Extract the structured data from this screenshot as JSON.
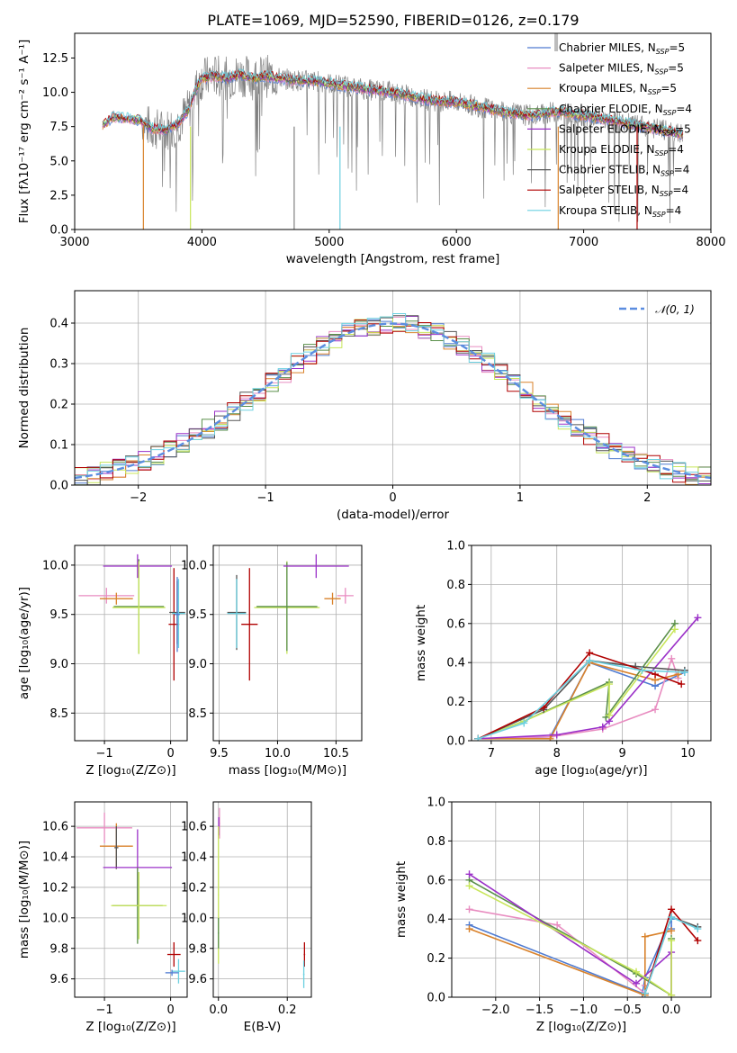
{
  "figure": {
    "title": "PLATE=1069, MJD=52590, FIBERID=0126, z=0.179"
  },
  "colors": {
    "Chabrier MILES": "#4f7bd1",
    "Salpeter MILES": "#e88cc0",
    "Kroupa MILES": "#d9822b",
    "Chabrier ELODIE": "#5a8f4a",
    "Salpeter ELODIE": "#9b30c8",
    "Kroupa ELODIE": "#c8e65a",
    "Chabrier STELIB": "#555555",
    "Salpeter STELIB": "#b00000",
    "Kroupa STELIB": "#6cd0e0",
    "data": "#808080",
    "normal_curve": "#5b8de0"
  },
  "models": [
    {
      "name": "Chabrier MILES",
      "nssp": "5"
    },
    {
      "name": "Salpeter MILES",
      "nssp": "5"
    },
    {
      "name": "Kroupa MILES",
      "nssp": "5"
    },
    {
      "name": "Chabrier ELODIE",
      "nssp": "4"
    },
    {
      "name": "Salpeter ELODIE",
      "nssp": "5"
    },
    {
      "name": "Kroupa ELODIE",
      "nssp": "4"
    },
    {
      "name": "Chabrier STELIB",
      "nssp": "4"
    },
    {
      "name": "Salpeter STELIB",
      "nssp": "4"
    },
    {
      "name": "Kroupa STELIB",
      "nssp": "4"
    }
  ],
  "chart_data": [
    {
      "id": "spectrum",
      "type": "line",
      "title": "PLATE=1069, MJD=52590, FIBERID=0126, z=0.179",
      "xlabel": "wavelength [Angstrom, rest frame]",
      "ylabel": "Flux [fλ10⁻¹⁷ erg cm⁻² s⁻¹ A⁻¹]",
      "xlim": [
        3000,
        8000
      ],
      "ylim": [
        0,
        14.3
      ],
      "xticks": [
        "3000",
        "4000",
        "5000",
        "6000",
        "7000",
        "8000"
      ],
      "yticks": [
        "0.0",
        "2.5",
        "5.0",
        "7.5",
        "10.0",
        "12.5"
      ],
      "grid": false,
      "legend": "top-right",
      "continuum": {
        "x": [
          3220,
          3300,
          3400,
          3500,
          3600,
          3700,
          3800,
          3900,
          3950,
          4000,
          4100,
          4200,
          4300,
          4400,
          4500,
          4700,
          4900,
          5100,
          5300,
          5500,
          5800,
          6000,
          6200,
          6400,
          6600,
          6800,
          7000,
          7200,
          7400,
          7600,
          7780
        ],
        "y": [
          7.6,
          8.2,
          8.1,
          8.0,
          7.4,
          7.2,
          7.6,
          8.8,
          10.2,
          11.0,
          11.2,
          11.0,
          11.3,
          11.0,
          11.2,
          10.9,
          10.8,
          10.5,
          10.2,
          10.0,
          9.4,
          9.3,
          8.9,
          8.5,
          8.3,
          8.6,
          8.3,
          8.0,
          7.6,
          7.3,
          6.9
        ]
      }
    },
    {
      "id": "residuals",
      "type": "line",
      "xlabel": "(data-model)/error",
      "ylabel": "Normed distribution",
      "xlim": [
        -2.5,
        2.5
      ],
      "ylim": [
        0,
        0.48
      ],
      "xticks": [
        "−2",
        "−1",
        "0",
        "1",
        "2"
      ],
      "yticks": [
        "0.0",
        "0.1",
        "0.2",
        "0.3",
        "0.4"
      ],
      "grid": true,
      "legend": "top-right",
      "legend_label": "𝒩(0, 1)",
      "curve": "normal(0,1)"
    },
    {
      "id": "age-vs-Z",
      "type": "scatter",
      "xlabel": "Z [log₁₀(Z/Z⊙)]",
      "ylabel": "age  [log₁₀(age/yr)]",
      "xlim": [
        -1.45,
        0.25
      ],
      "ylim": [
        8.22,
        10.2
      ],
      "xticks": [
        "−1",
        "0"
      ],
      "yticks": [
        "8.5",
        "9.0",
        "9.5",
        "10.0"
      ],
      "grid": true,
      "points": [
        {
          "model": "Salpeter MILES",
          "x": -0.97,
          "y": 9.69,
          "xerr": 0.42,
          "yerr": 0.08
        },
        {
          "model": "Kroupa MILES",
          "x": -0.82,
          "y": 9.66,
          "xerr": 0.25,
          "yerr": 0.06
        },
        {
          "model": "Salpeter ELODIE",
          "x": -0.5,
          "y": 9.99,
          "xerr": 0.52,
          "yerr": 0.12
        },
        {
          "model": "Chabrier ELODIE",
          "x": -0.48,
          "y": 9.58,
          "xerr": 0.38,
          "yerr": 0.48
        },
        {
          "model": "Kroupa ELODIE",
          "x": -0.48,
          "y": 9.57,
          "xerr": 0.4,
          "yerr": 0.47
        },
        {
          "model": "Salpeter STELIB",
          "x": 0.05,
          "y": 9.4,
          "xerr": 0.08,
          "yerr": 0.57
        },
        {
          "model": "Chabrier STELIB",
          "x": 0.1,
          "y": 9.52,
          "xerr": 0.12,
          "yerr": 0.32
        },
        {
          "model": "Kroupa STELIB",
          "x": 0.12,
          "y": 9.51,
          "xerr": 0.1,
          "yerr": 0.35
        },
        {
          "model": "Chabrier MILES",
          "x": 0.1,
          "y": 9.5,
          "xerr": 0.04,
          "yerr": 0.38
        }
      ]
    },
    {
      "id": "age-vs-mass",
      "type": "scatter",
      "xlabel": "mass [log₁₀(M/M⊙)]",
      "xlim": [
        9.45,
        10.72
      ],
      "ylim": [
        8.22,
        10.2
      ],
      "xticks": [
        "9.5",
        "10.0",
        "10.5"
      ],
      "yticks": [
        "8.5",
        "9.0",
        "9.5",
        "10.0"
      ],
      "grid": true,
      "points": [
        {
          "model": "Chabrier STELIB",
          "x": 9.65,
          "y": 9.52,
          "xerr": 0.08,
          "yerr": 0.38
        },
        {
          "model": "Kroupa STELIB",
          "x": 9.65,
          "y": 9.51,
          "xerr": 0.08,
          "yerr": 0.35
        },
        {
          "model": "Salpeter STELIB",
          "x": 9.76,
          "y": 9.4,
          "xerr": 0.07,
          "yerr": 0.57
        },
        {
          "model": "Kroupa ELODIE",
          "x": 10.08,
          "y": 9.57,
          "xerr": 0.28,
          "yerr": 0.47
        },
        {
          "model": "Chabrier ELODIE",
          "x": 10.08,
          "y": 9.58,
          "xerr": 0.26,
          "yerr": 0.45
        },
        {
          "model": "Salpeter ELODIE",
          "x": 10.33,
          "y": 9.99,
          "xerr": 0.28,
          "yerr": 0.12
        },
        {
          "model": "Kroupa MILES",
          "x": 10.47,
          "y": 9.66,
          "xerr": 0.07,
          "yerr": 0.06
        },
        {
          "model": "Salpeter MILES",
          "x": 10.58,
          "y": 9.69,
          "xerr": 0.07,
          "yerr": 0.08
        }
      ]
    },
    {
      "id": "weight-vs-age",
      "type": "line",
      "xlabel": "age  [log₁₀(age/yr)]",
      "ylabel": "mass weight",
      "xlim": [
        6.7,
        10.35
      ],
      "ylim": [
        0,
        1.0
      ],
      "xticks": [
        "7",
        "8",
        "9",
        "10"
      ],
      "yticks": [
        "0.0",
        "0.2",
        "0.4",
        "0.6",
        "0.8",
        "1.0"
      ],
      "grid": true,
      "series": [
        {
          "name": "Chabrier MILES",
          "x": [
            6.8,
            7.9,
            8.5,
            9.5,
            9.95
          ],
          "y": [
            0.01,
            0.02,
            0.4,
            0.28,
            0.35
          ]
        },
        {
          "name": "Salpeter MILES",
          "x": [
            6.8,
            7.9,
            8.7,
            9.5,
            9.75,
            9.85
          ],
          "y": [
            0.01,
            0.02,
            0.06,
            0.16,
            0.42,
            0.32
          ]
        },
        {
          "name": "Kroupa MILES",
          "x": [
            6.8,
            7.9,
            8.5,
            9.5,
            9.85
          ],
          "y": [
            0.01,
            0.01,
            0.4,
            0.31,
            0.34
          ]
        },
        {
          "name": "Chabrier ELODIE",
          "x": [
            6.8,
            7.5,
            8.8,
            8.75,
            9.8
          ],
          "y": [
            0.01,
            0.1,
            0.3,
            0.12,
            0.6
          ]
        },
        {
          "name": "Salpeter ELODIE",
          "x": [
            6.8,
            8.0,
            8.7,
            8.8,
            10.15
          ],
          "y": [
            0.01,
            0.03,
            0.07,
            0.1,
            0.63
          ]
        },
        {
          "name": "Kroupa ELODIE",
          "x": [
            6.8,
            7.5,
            8.8,
            8.8,
            9.8
          ],
          "y": [
            0.01,
            0.1,
            0.29,
            0.13,
            0.57
          ]
        },
        {
          "name": "Chabrier STELIB",
          "x": [
            6.8,
            7.8,
            8.5,
            9.2,
            9.95
          ],
          "y": [
            0.01,
            0.16,
            0.41,
            0.38,
            0.36
          ]
        },
        {
          "name": "Salpeter STELIB",
          "x": [
            6.8,
            7.8,
            8.5,
            9.5,
            9.9
          ],
          "y": [
            0.01,
            0.17,
            0.45,
            0.34,
            0.29
          ]
        },
        {
          "name": "Kroupa STELIB",
          "x": [
            6.8,
            7.5,
            8.5,
            9.3,
            9.95
          ],
          "y": [
            0.01,
            0.09,
            0.41,
            0.36,
            0.35
          ]
        }
      ]
    },
    {
      "id": "mass-vs-Z",
      "type": "scatter",
      "xlabel": "Z [log₁₀(Z/Z⊙)]",
      "ylabel": "mass [log₁₀(M/M⊙)]",
      "xlim": [
        -1.45,
        0.25
      ],
      "ylim": [
        9.48,
        10.76
      ],
      "xticks": [
        "−1",
        "0"
      ],
      "yticks": [
        "9.6",
        "9.8",
        "10.0",
        "10.2",
        "10.4",
        "10.6"
      ],
      "grid": true,
      "points": [
        {
          "model": "Salpeter MILES",
          "x": -1.0,
          "y": 10.59,
          "xerr": 0.42,
          "yerr": 0.1
        },
        {
          "model": "Kroupa MILES",
          "x": -0.82,
          "y": 10.47,
          "xerr": 0.25,
          "yerr": 0.15
        },
        {
          "model": "Chabrier STELIB",
          "x": -0.82,
          "y": 10.46,
          "xerr": 0.03,
          "yerr": 0.14
        },
        {
          "model": "Salpeter ELODIE",
          "x": -0.5,
          "y": 10.33,
          "xerr": 0.52,
          "yerr": 0.25
        },
        {
          "model": "Chabrier ELODIE",
          "x": -0.5,
          "y": 10.08,
          "xerr": 0.38,
          "yerr": 0.25
        },
        {
          "model": "Kroupa ELODIE",
          "x": -0.48,
          "y": 10.08,
          "xerr": 0.42,
          "yerr": 0.22
        },
        {
          "model": "Salpeter STELIB",
          "x": 0.05,
          "y": 9.76,
          "xerr": 0.1,
          "yerr": 0.08
        },
        {
          "model": "Kroupa STELIB",
          "x": 0.12,
          "y": 9.65,
          "xerr": 0.1,
          "yerr": 0.08
        },
        {
          "model": "Chabrier MILES",
          "x": 0.02,
          "y": 9.64,
          "xerr": 0.1,
          "yerr": 0.02
        }
      ]
    },
    {
      "id": "mass-vs-EBV",
      "type": "scatter",
      "xlabel": "E(B-V)",
      "xlim": [
        -0.015,
        0.27
      ],
      "ylim": [
        9.48,
        10.76
      ],
      "xticks": [
        "0.0",
        "0.2"
      ],
      "yticks": [
        "9.6",
        "9.8",
        "10.0",
        "10.2",
        "10.4",
        "10.6"
      ],
      "grid": true,
      "points": [
        {
          "model": "Salpeter MILES",
          "x": 0.003,
          "y": 10.62,
          "xerr": 0.002,
          "yerr": 0.1
        },
        {
          "model": "Salpeter ELODIE",
          "x": 0.001,
          "y": 10.6,
          "xerr": 0.002,
          "yerr": 0.06
        },
        {
          "model": "Kroupa ELODIE",
          "x": 0.0,
          "y": 10.15,
          "xerr": 0.002,
          "yerr": 0.45
        },
        {
          "model": "Chabrier ELODIE",
          "x": 0.0,
          "y": 9.9,
          "xerr": 0.002,
          "yerr": 0.1
        },
        {
          "model": "Salpeter STELIB",
          "x": 0.25,
          "y": 9.76,
          "xerr": 0.002,
          "yerr": 0.08
        },
        {
          "model": "Kroupa STELIB",
          "x": 0.248,
          "y": 9.63,
          "xerr": 0.002,
          "yerr": 0.09
        }
      ]
    },
    {
      "id": "weight-vs-Z",
      "type": "line",
      "xlabel": "Z [log₁₀(Z/Z⊙)]",
      "ylabel": "mass weight",
      "xlim": [
        -2.5,
        0.45
      ],
      "ylim": [
        0,
        1.0
      ],
      "xticks": [
        "−2.0",
        "−1.5",
        "−1.0",
        "−0.5",
        "0.0"
      ],
      "yticks": [
        "0.0",
        "0.2",
        "0.4",
        "0.6",
        "0.8",
        "1.0"
      ],
      "grid": true,
      "series": [
        {
          "name": "Chabrier MILES",
          "x": [
            -2.3,
            -0.33,
            -0.3,
            0.0,
            0.0
          ],
          "y": [
            0.37,
            0.02,
            0.1,
            0.4,
            0.35
          ]
        },
        {
          "name": "Salpeter MILES",
          "x": [
            -2.3,
            -1.3,
            -0.3,
            -0.3
          ],
          "y": [
            0.45,
            0.37,
            0.02,
            0.06
          ]
        },
        {
          "name": "Kroupa MILES",
          "x": [
            -2.3,
            -0.3,
            -0.3,
            0.0
          ],
          "y": [
            0.35,
            0.01,
            0.31,
            0.34
          ]
        },
        {
          "name": "Chabrier ELODIE",
          "x": [
            -2.3,
            -0.4,
            0.0,
            0.0
          ],
          "y": [
            0.6,
            0.12,
            0.01,
            0.3
          ]
        },
        {
          "name": "Salpeter ELODIE",
          "x": [
            -2.3,
            -0.4,
            0.0,
            0.0
          ],
          "y": [
            0.63,
            0.07,
            0.23,
            0.01
          ]
        },
        {
          "name": "Kroupa ELODIE",
          "x": [
            -2.3,
            -0.4,
            0.0,
            0.0
          ],
          "y": [
            0.57,
            0.13,
            0.01,
            0.29
          ]
        },
        {
          "name": "Chabrier STELIB",
          "x": [
            -0.3,
            0.0,
            0.3
          ],
          "y": [
            0.02,
            0.41,
            0.36
          ]
        },
        {
          "name": "Salpeter STELIB",
          "x": [
            -0.3,
            0.0,
            0.3
          ],
          "y": [
            0.02,
            0.45,
            0.29
          ]
        },
        {
          "name": "Kroupa STELIB",
          "x": [
            -0.3,
            0.0,
            0.3
          ],
          "y": [
            0.02,
            0.41,
            0.35
          ]
        }
      ]
    }
  ]
}
